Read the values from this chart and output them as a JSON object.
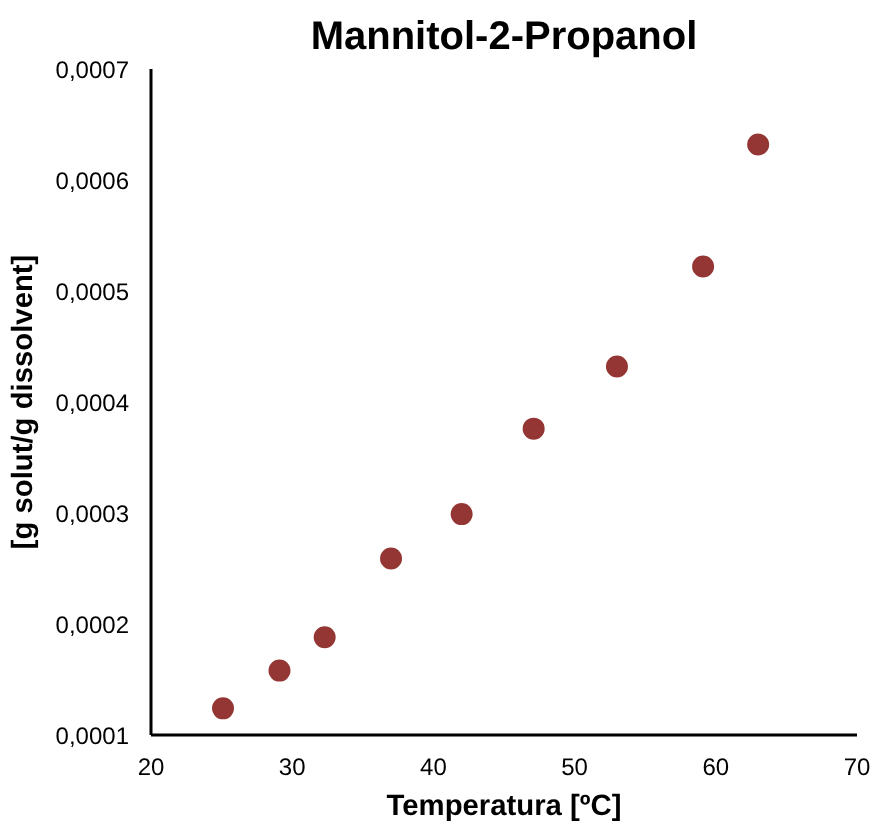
{
  "chart_data": {
    "type": "scatter",
    "title": "Mannitol-2-Propanol",
    "xlabel": "Temperatura [ºC]",
    "ylabel": "[g solut/g dissolvent]",
    "x": [
      25.1,
      29.1,
      32.3,
      37.0,
      42.0,
      47.1,
      53.0,
      59.1,
      63.0
    ],
    "series": [
      {
        "color": "#943634",
        "values": [
          0.000124,
          0.000158,
          0.000188,
          0.000259,
          0.000299,
          0.000376,
          0.000432,
          0.000522,
          0.000632
        ]
      }
    ],
    "xlim": [
      20,
      70
    ],
    "xticks": [
      20,
      30,
      40,
      50,
      60,
      70
    ],
    "ylim": [
      0.0001,
      0.0007
    ],
    "yticks": [
      {
        "value": 0.0001,
        "label": "0,0001"
      },
      {
        "value": 0.0002,
        "label": "0,0002"
      },
      {
        "value": 0.0003,
        "label": "0,0003"
      },
      {
        "value": 0.0004,
        "label": "0,0004"
      },
      {
        "value": 0.0005,
        "label": "0,0005"
      },
      {
        "value": 0.0006,
        "label": "0,0006"
      },
      {
        "value": 0.0007,
        "label": "0,0007"
      }
    ],
    "grid": false,
    "marker": "circle"
  }
}
